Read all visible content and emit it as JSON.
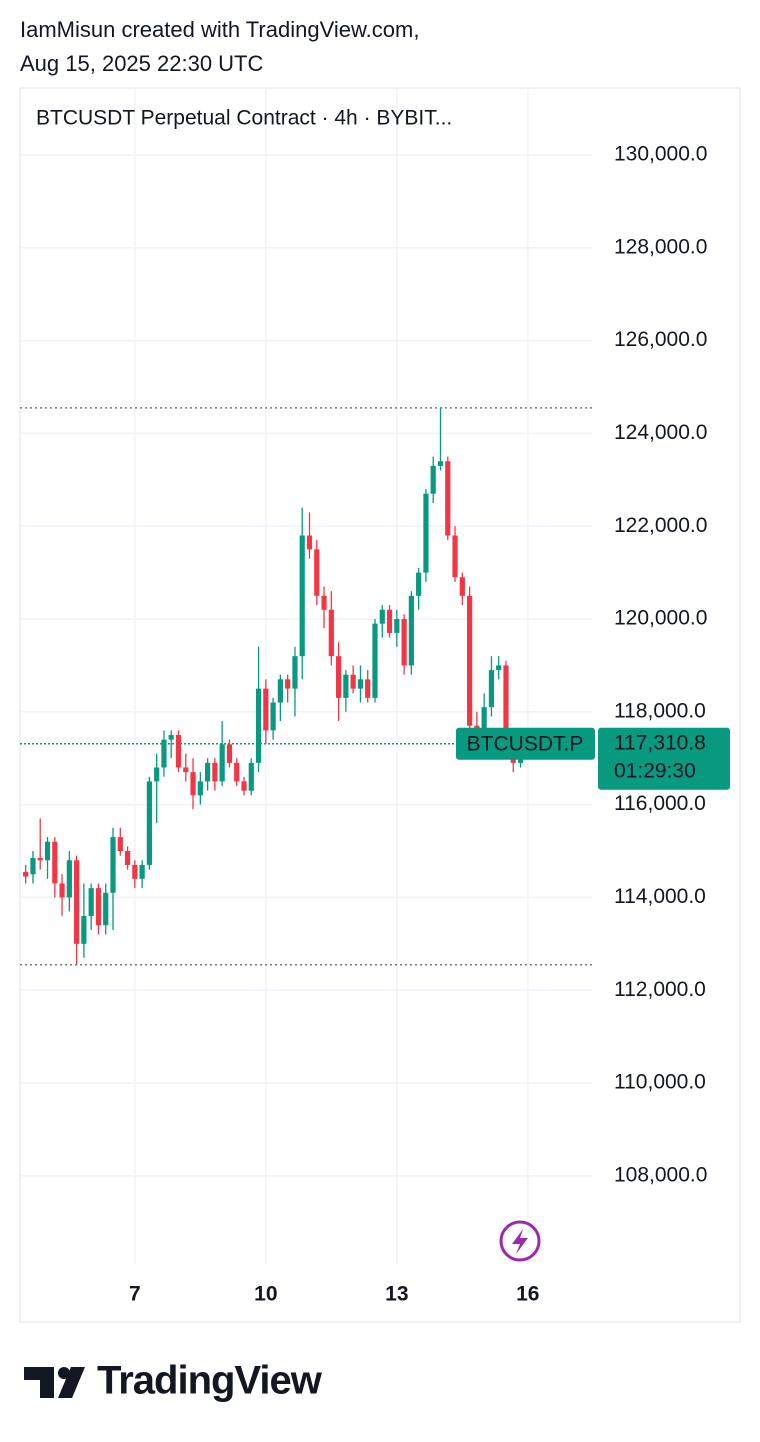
{
  "header": {
    "line1": "IamMisun created with TradingView.com,",
    "line2": "Aug 15, 2025 22:30 UTC"
  },
  "chart_data": {
    "type": "candlestick",
    "title": "BTCUSDT Perpetual Contract · 4h · BYBIT...",
    "up_color": "#089981",
    "down_color": "#f23645",
    "grid": true,
    "xlim": [
      4.37,
      17.47
    ],
    "xticks": [
      7,
      10,
      13,
      16
    ],
    "ylim": [
      106078,
      131444
    ],
    "yticks": [
      {
        "value": 108000,
        "label": "108,000.0"
      },
      {
        "value": 110000,
        "label": "110,000.0"
      },
      {
        "value": 112000,
        "label": "112,000.0"
      },
      {
        "value": 114000,
        "label": "114,000.0"
      },
      {
        "value": 116000,
        "label": "116,000.0"
      },
      {
        "value": 118000,
        "label": "118,000.0"
      },
      {
        "value": 120000,
        "label": "120,000.0"
      },
      {
        "value": 122000,
        "label": "122,000.0"
      },
      {
        "value": 124000,
        "label": "124,000.0"
      },
      {
        "value": 126000,
        "label": "126,000.0"
      },
      {
        "value": 128000,
        "label": "128,000.0"
      },
      {
        "value": 130000,
        "label": "130,000.0"
      }
    ],
    "x": [
      4.5,
      4.667,
      4.833,
      5,
      5.167,
      5.333,
      5.5,
      5.667,
      5.833,
      6,
      6.167,
      6.333,
      6.5,
      6.667,
      6.833,
      7,
      7.167,
      7.333,
      7.5,
      7.667,
      7.833,
      8,
      8.167,
      8.333,
      8.5,
      8.667,
      8.833,
      9,
      9.167,
      9.333,
      9.5,
      9.667,
      9.833,
      10,
      10.167,
      10.333,
      10.5,
      10.667,
      10.833,
      11,
      11.167,
      11.333,
      11.5,
      11.667,
      11.833,
      12,
      12.167,
      12.333,
      12.5,
      12.667,
      12.833,
      13,
      13.167,
      13.333,
      13.5,
      13.667,
      13.833,
      14,
      14.167,
      14.333,
      14.5,
      14.667,
      14.833,
      15,
      15.167,
      15.333,
      15.5,
      15.667,
      15.833
    ],
    "open": [
      114550,
      114500,
      114850,
      114800,
      115200,
      114300,
      114000,
      114800,
      113000,
      113600,
      114200,
      113400,
      114100,
      115300,
      115000,
      114700,
      114400,
      114700,
      116500,
      116800,
      117400,
      117500,
      116800,
      116700,
      116200,
      116500,
      116900,
      116500,
      117300,
      116900,
      116500,
      116300,
      116900,
      118500,
      117600,
      118200,
      118700,
      118500,
      119200,
      121800,
      121500,
      120500,
      120200,
      119200,
      118300,
      118800,
      118500,
      118700,
      118300,
      119900,
      120200,
      119700,
      120000,
      119000,
      120500,
      121000,
      122700,
      123300,
      123400,
      121800,
      120900,
      120500,
      117700,
      117400,
      118100,
      118900,
      119000,
      117300,
      116900
    ],
    "high": [
      114700,
      115000,
      115700,
      115300,
      115300,
      114500,
      115000,
      114900,
      114300,
      114300,
      114300,
      114300,
      115500,
      115500,
      115100,
      114800,
      114800,
      116600,
      117100,
      117600,
      117600,
      117600,
      117100,
      117000,
      116700,
      117000,
      117000,
      117800,
      117400,
      117000,
      116600,
      117000,
      119400,
      118700,
      118300,
      118800,
      118800,
      119400,
      122400,
      122300,
      121700,
      120700,
      120600,
      119500,
      118900,
      119000,
      119000,
      118900,
      120000,
      120300,
      120300,
      120200,
      120100,
      120600,
      121100,
      122800,
      123500,
      124550,
      123500,
      122000,
      121000,
      120700,
      118000,
      118400,
      119200,
      119200,
      119100,
      117500,
      117350
    ],
    "low": [
      114300,
      114300,
      114600,
      114400,
      114000,
      113600,
      113700,
      112550,
      112700,
      113300,
      113200,
      113200,
      113300,
      114900,
      114600,
      114200,
      114200,
      114600,
      115600,
      116600,
      117000,
      116700,
      116500,
      115900,
      116000,
      116300,
      116300,
      116400,
      116800,
      116400,
      116200,
      116200,
      116700,
      117300,
      117400,
      117800,
      118200,
      117900,
      118700,
      121300,
      120300,
      119800,
      119000,
      117800,
      118000,
      118400,
      118200,
      118200,
      118200,
      119600,
      119600,
      119400,
      118800,
      118800,
      120200,
      120800,
      122500,
      123200,
      121700,
      120800,
      120300,
      117400,
      117200,
      117300,
      117900,
      118700,
      117100,
      116700,
      116800
    ],
    "close": [
      114450,
      114850,
      114800,
      115200,
      114300,
      114000,
      114800,
      113000,
      113600,
      114200,
      113400,
      114100,
      115300,
      115000,
      114700,
      114400,
      114700,
      116500,
      116800,
      117400,
      117500,
      116800,
      116700,
      116200,
      116500,
      116900,
      116500,
      117300,
      116900,
      116500,
      116300,
      116900,
      118500,
      117600,
      118200,
      118700,
      118500,
      119200,
      121800,
      121500,
      120500,
      120200,
      119200,
      118300,
      118800,
      118500,
      118700,
      118300,
      119900,
      120200,
      119700,
      120000,
      119000,
      120500,
      121000,
      122700,
      123300,
      123400,
      121800,
      120900,
      120500,
      117700,
      117400,
      118100,
      118900,
      119000,
      117300,
      116900,
      117310.8
    ],
    "high_line": 124550,
    "low_line": 112550,
    "last_price": {
      "value": 117310.8,
      "label": "117,310.8"
    },
    "countdown": "01:29:30",
    "symbol_tag": "BTCUSDT.P"
  },
  "logo": "TradingView"
}
